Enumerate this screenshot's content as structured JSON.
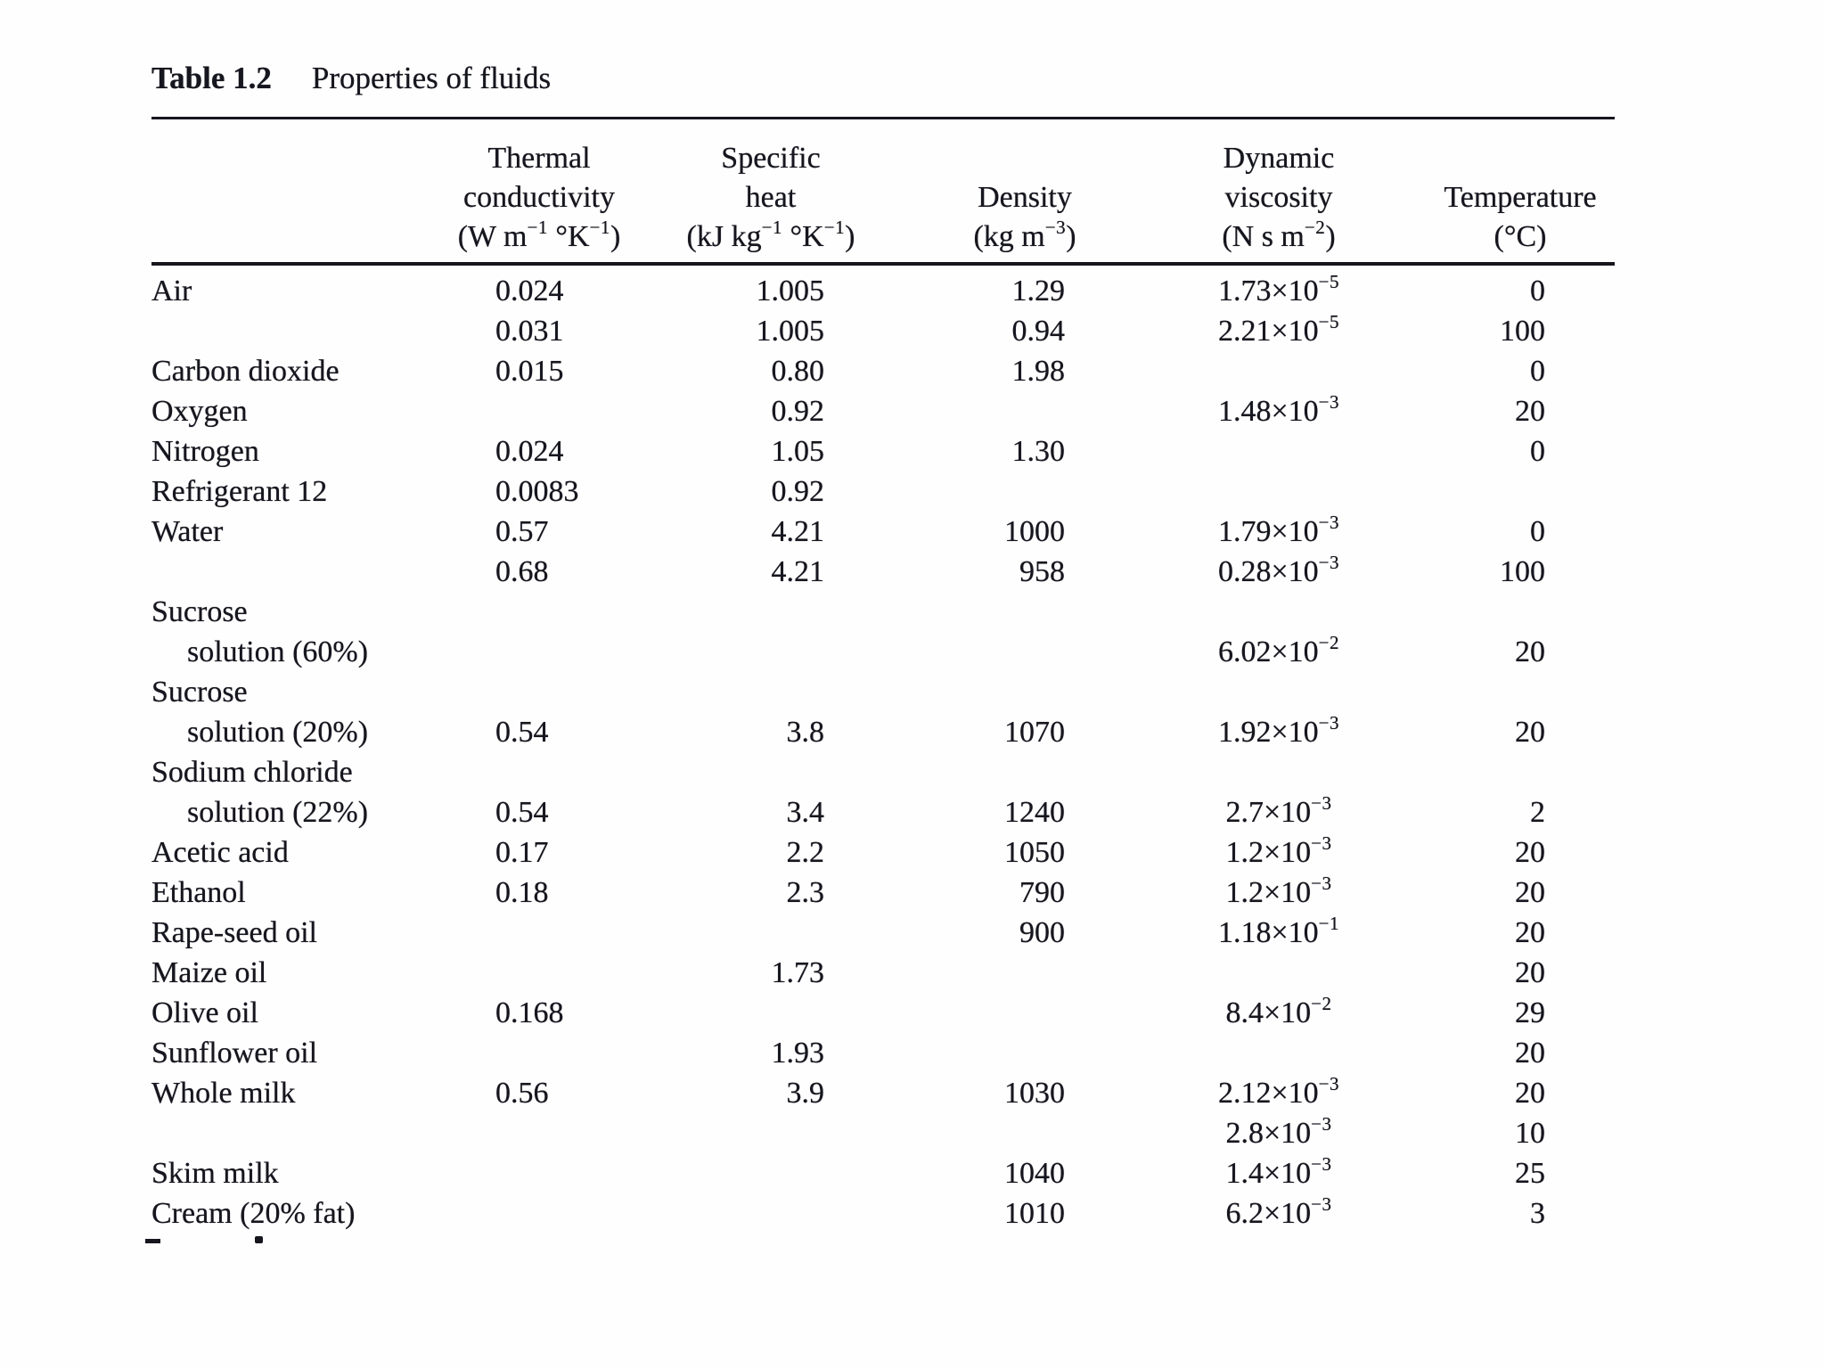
{
  "page": {
    "background_color": "#fefefe",
    "ink_color": "#16161f"
  },
  "table": {
    "title_label": "Table 1.2",
    "title_text": "Properties of fluids",
    "columns": [
      {
        "id": "substance",
        "lines": [],
        "unit": ""
      },
      {
        "id": "thermal-conductivity",
        "lines": [
          "Thermal",
          "conductivity"
        ],
        "unit": "(W m^{−1} °K^{−1})"
      },
      {
        "id": "specific-heat",
        "lines": [
          "Specific",
          "heat"
        ],
        "unit": "(kJ kg^{−1} °K^{−1})"
      },
      {
        "id": "density",
        "lines": [
          "Density"
        ],
        "unit": "(kg m^{−3})"
      },
      {
        "id": "dynamic-viscosity",
        "lines": [
          "Dynamic",
          "viscosity"
        ],
        "unit": "(N s m^{−2})"
      },
      {
        "id": "temperature",
        "lines": [
          "Temperature"
        ],
        "unit": "(°C)"
      }
    ],
    "rows": [
      {
        "substance": "Air",
        "indent": false,
        "k": "0.024",
        "cp": "1.005",
        "rho": "1.29",
        "mu": "1.73×10^{−5}",
        "t": "0"
      },
      {
        "substance": "",
        "indent": false,
        "k": "0.031",
        "cp": "1.005",
        "rho": "0.94",
        "mu": "2.21×10^{−5}",
        "t": "100"
      },
      {
        "substance": "Carbon dioxide",
        "indent": false,
        "k": "0.015",
        "cp": "0.80",
        "rho": "1.98",
        "mu": "",
        "t": "0"
      },
      {
        "substance": "Oxygen",
        "indent": false,
        "k": "",
        "cp": "0.92",
        "rho": "",
        "mu": "1.48×10^{−3}",
        "t": "20"
      },
      {
        "substance": "Nitrogen",
        "indent": false,
        "k": "0.024",
        "cp": "1.05",
        "rho": "1.30",
        "mu": "",
        "t": "0"
      },
      {
        "substance": "Refrigerant 12",
        "indent": false,
        "k": "0.0083",
        "cp": "0.92",
        "rho": "",
        "mu": "",
        "t": ""
      },
      {
        "substance": "Water",
        "indent": false,
        "k": "0.57",
        "cp": "4.21",
        "rho": "1000",
        "mu": "1.79×10^{−3}",
        "t": "0"
      },
      {
        "substance": "",
        "indent": false,
        "k": "0.68",
        "cp": "4.21",
        "rho": "958",
        "mu": "0.28×10^{−3}",
        "t": "100"
      },
      {
        "substance": "Sucrose",
        "indent": false,
        "k": "",
        "cp": "",
        "rho": "",
        "mu": "",
        "t": ""
      },
      {
        "substance": "solution (60%)",
        "indent": true,
        "k": "",
        "cp": "",
        "rho": "",
        "mu": "6.02×10^{−2}",
        "t": "20"
      },
      {
        "substance": "Sucrose",
        "indent": false,
        "k": "",
        "cp": "",
        "rho": "",
        "mu": "",
        "t": ""
      },
      {
        "substance": "solution (20%)",
        "indent": true,
        "k": "0.54",
        "cp": "3.8",
        "rho": "1070",
        "mu": "1.92×10^{−3}",
        "t": "20"
      },
      {
        "substance": "Sodium chloride",
        "indent": false,
        "k": "",
        "cp": "",
        "rho": "",
        "mu": "",
        "t": ""
      },
      {
        "substance": "solution (22%)",
        "indent": true,
        "k": "0.54",
        "cp": "3.4",
        "rho": "1240",
        "mu": "2.7×10^{−3}",
        "t": "2"
      },
      {
        "substance": "Acetic acid",
        "indent": false,
        "k": "0.17",
        "cp": "2.2",
        "rho": "1050",
        "mu": "1.2×10^{−3}",
        "t": "20"
      },
      {
        "substance": "Ethanol",
        "indent": false,
        "k": "0.18",
        "cp": "2.3",
        "rho": "790",
        "mu": "1.2×10^{−3}",
        "t": "20"
      },
      {
        "substance": "Rape-seed oil",
        "indent": false,
        "k": "",
        "cp": "",
        "rho": "900",
        "mu": "1.18×10^{−1}",
        "t": "20"
      },
      {
        "substance": "Maize oil",
        "indent": false,
        "k": "",
        "cp": "1.73",
        "rho": "",
        "mu": "",
        "t": "20"
      },
      {
        "substance": "Olive oil",
        "indent": false,
        "k": "0.168",
        "cp": "",
        "rho": "",
        "mu": "8.4×10^{−2}",
        "t": "29"
      },
      {
        "substance": "Sunflower oil",
        "indent": false,
        "k": "",
        "cp": "1.93",
        "rho": "",
        "mu": "",
        "t": "20"
      },
      {
        "substance": "Whole milk",
        "indent": false,
        "k": "0.56",
        "cp": "3.9",
        "rho": "1030",
        "mu": "2.12×10^{−3}",
        "t": "20"
      },
      {
        "substance": "",
        "indent": false,
        "k": "",
        "cp": "",
        "rho": "",
        "mu": "2.8×10^{−3}",
        "t": "10"
      },
      {
        "substance": "Skim milk",
        "indent": false,
        "k": "",
        "cp": "",
        "rho": "1040",
        "mu": "1.4×10^{−3}",
        "t": "25"
      },
      {
        "substance": "Cream (20% fat)",
        "indent": false,
        "k": "",
        "cp": "",
        "rho": "1010",
        "mu": "6.2×10^{−3}",
        "t": "3"
      }
    ]
  }
}
